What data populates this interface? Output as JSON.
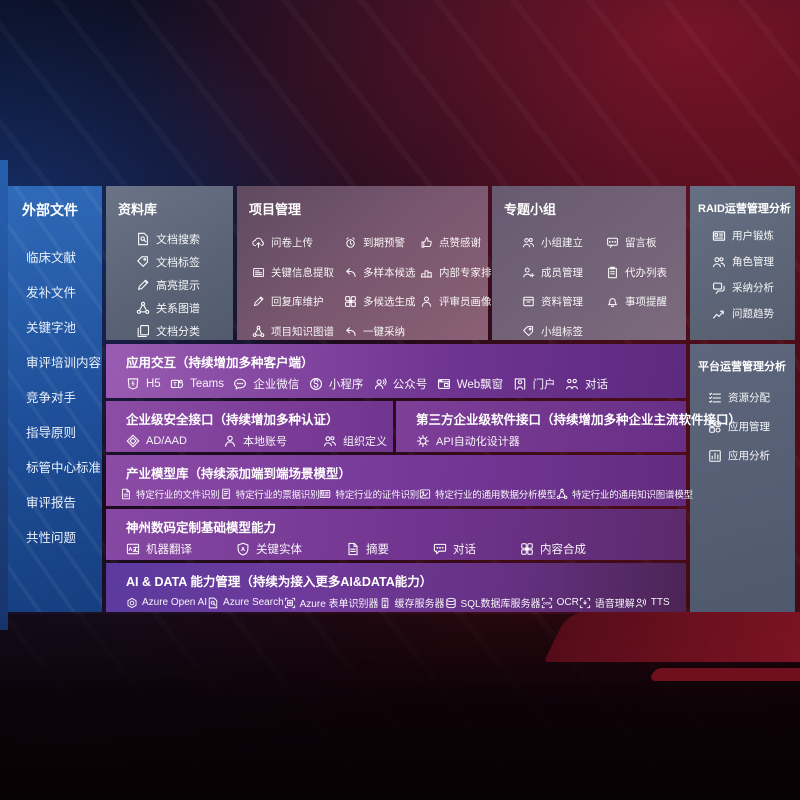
{
  "sidebar": {
    "title": "外部文件",
    "items": [
      "临床文献",
      "发补文件",
      "关键字池",
      "审评培训内容",
      "竞争对手",
      "指导原则",
      "标管中心标准",
      "审评报告",
      "共性问题"
    ]
  },
  "library": {
    "title": "资料库",
    "items": [
      {
        "icon": "doc-search",
        "label": "文档搜索"
      },
      {
        "icon": "tag",
        "label": "文档标签"
      },
      {
        "icon": "pen",
        "label": "高亮提示"
      },
      {
        "icon": "network",
        "label": "关系图谱"
      },
      {
        "icon": "docs",
        "label": "文档分类"
      }
    ]
  },
  "project": {
    "title": "项目管理",
    "items": [
      {
        "icon": "cloud-up",
        "label": "问卷上传"
      },
      {
        "icon": "extract",
        "label": "关键信息提取"
      },
      {
        "icon": "pen",
        "label": "回复库维护"
      },
      {
        "icon": "network",
        "label": "项目知识图谱"
      },
      {
        "icon": "alarm",
        "label": "到期预警"
      },
      {
        "icon": "reply",
        "label": "多样本候选"
      },
      {
        "icon": "grid-gen",
        "label": "多候选生成"
      },
      {
        "icon": "reply",
        "label": "一键采纳"
      },
      {
        "icon": "thumb",
        "label": "点赞感谢"
      },
      {
        "icon": "rank",
        "label": "内部专家排名"
      },
      {
        "icon": "person",
        "label": "评审员画像"
      }
    ]
  },
  "groups": {
    "title": "专题小组",
    "items": [
      {
        "icon": "people",
        "label": "小组建立"
      },
      {
        "icon": "person-plus",
        "label": "成员管理"
      },
      {
        "icon": "archive",
        "label": "资料管理"
      },
      {
        "icon": "tag",
        "label": "小组标签"
      },
      {
        "icon": "bbs",
        "label": "留言板"
      },
      {
        "icon": "clipboard",
        "label": "代办列表"
      },
      {
        "icon": "bell",
        "label": "事项提醒"
      }
    ]
  },
  "raid": {
    "title": "RAID运营管理分析",
    "items": [
      {
        "icon": "idcard",
        "label": "用户锻炼"
      },
      {
        "icon": "people",
        "label": "角色管理"
      },
      {
        "icon": "chat-multi",
        "label": "采纳分析"
      },
      {
        "icon": "trend",
        "label": "问题趋势"
      }
    ]
  },
  "platform": {
    "title": "平台运营管理分析",
    "items": [
      {
        "icon": "list",
        "label": "资源分配"
      },
      {
        "icon": "appgrid",
        "label": "应用管理"
      },
      {
        "icon": "chartbox",
        "label": "应用分析"
      }
    ]
  },
  "interaction": {
    "title": "应用交互（持续增加多种客户端）",
    "items": [
      {
        "icon": "h5",
        "label": "H5"
      },
      {
        "icon": "teams",
        "label": "Teams"
      },
      {
        "icon": "wecom",
        "label": "企业微信"
      },
      {
        "icon": "miniapp",
        "label": "小程序"
      },
      {
        "icon": "pubacct",
        "label": "公众号"
      },
      {
        "icon": "webwin",
        "label": "Web飘窗"
      },
      {
        "icon": "portal",
        "label": "门户"
      },
      {
        "icon": "convo",
        "label": "对话"
      }
    ]
  },
  "security": {
    "title": "企业级安全接口（持续增加多种认证）",
    "items": [
      {
        "icon": "diamond",
        "label": "AD/AAD"
      },
      {
        "icon": "person",
        "label": "本地账号"
      },
      {
        "icon": "people",
        "label": "组织定义"
      }
    ]
  },
  "thirdparty": {
    "title": "第三方企业级软件接口（持续增加多种企业主流软件接口）",
    "items": [
      {
        "icon": "gear",
        "label": "API自动化设计器"
      }
    ]
  },
  "models": {
    "title": "产业模型库（持续添加端到端场景模型）",
    "items": [
      {
        "icon": "filedoc",
        "label": "特定行业的文件识别"
      },
      {
        "icon": "receipt",
        "label": "特定行业的票据识别"
      },
      {
        "icon": "idcard",
        "label": "特定行业的证件识别"
      },
      {
        "icon": "imgchart",
        "label": "特定行业的通用数据分析模型"
      },
      {
        "icon": "network",
        "label": "特定行业的通用知识图谱模型"
      }
    ]
  },
  "foundation": {
    "title": "神州数码定制基础模型能力",
    "items": [
      {
        "icon": "translate",
        "label": "机器翻译"
      },
      {
        "icon": "shield-a",
        "label": "关键实体"
      },
      {
        "icon": "filedoc",
        "label": "摘要"
      },
      {
        "icon": "chat",
        "label": "对话"
      },
      {
        "icon": "grid-gen",
        "label": "内容合成"
      }
    ]
  },
  "aidata": {
    "title": "AI & DATA 能力管理（持续为接入更多AI&DATA能力）",
    "items": [
      {
        "icon": "openai",
        "label": "Azure Open AI"
      },
      {
        "icon": "doc-search",
        "label": "Azure Search"
      },
      {
        "icon": "form",
        "label": "Azure 表单识别器"
      },
      {
        "icon": "cache",
        "label": "缓存服务器"
      },
      {
        "icon": "db",
        "label": "SQL数据库服务器"
      },
      {
        "icon": "ocr",
        "label": "OCR"
      },
      {
        "icon": "speech",
        "label": "语音理解"
      },
      {
        "icon": "tts",
        "label": "TTS"
      }
    ]
  },
  "colors": {
    "accent_purple": "#7b3c97",
    "sidebar_blue": "#2359a6",
    "panel_gray": "#5e6678",
    "backdrop_red": "#3a0a14",
    "backdrop_navy": "#0a0f24"
  }
}
